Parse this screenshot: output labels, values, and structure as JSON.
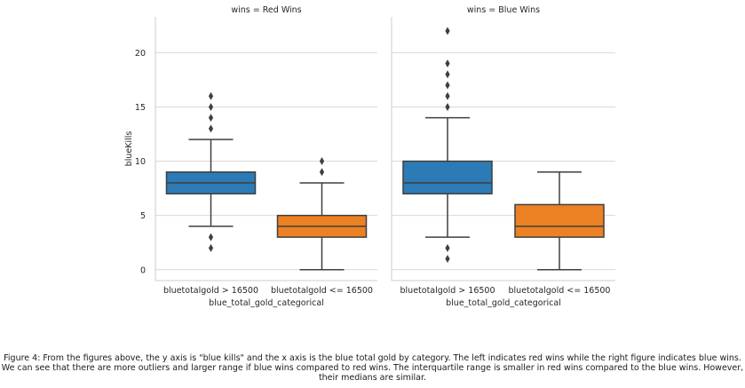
{
  "chart_data": {
    "type": "box",
    "x_label": "blue_total_gold_categorical",
    "y_label": "blueKills",
    "ylim": [
      -1,
      23.3
    ],
    "y_ticks": [
      0,
      5,
      10,
      15,
      20
    ],
    "grid": "horizontal",
    "categories": [
      "bluetotalgold > 16500",
      "bluetotalgold <= 16500"
    ],
    "colors": {
      "bluetotalgold > 16500": "#2c7bb6",
      "bluetotalgold <= 16500": "#ec8123"
    },
    "panels": [
      {
        "title": "wins = Red Wins",
        "boxes": [
          {
            "category": "bluetotalgold > 16500",
            "whisker_low": 4,
            "q1": 7,
            "median": 8,
            "q3": 9,
            "whisker_high": 12,
            "outliers": [
              2,
              3,
              13,
              14,
              15,
              16
            ]
          },
          {
            "category": "bluetotalgold <= 16500",
            "whisker_low": 0,
            "q1": 3,
            "median": 4,
            "q3": 5,
            "whisker_high": 8,
            "outliers": [
              9,
              10
            ]
          }
        ]
      },
      {
        "title": "wins = Blue Wins",
        "boxes": [
          {
            "category": "bluetotalgold > 16500",
            "whisker_low": 3,
            "q1": 7,
            "median": 8,
            "q3": 10,
            "whisker_high": 14,
            "outliers": [
              1,
              2,
              15,
              16,
              17,
              18,
              19,
              22
            ]
          },
          {
            "category": "bluetotalgold <= 16500",
            "whisker_low": 0,
            "q1": 3,
            "median": 4,
            "q3": 6,
            "whisker_high": 9,
            "outliers": []
          }
        ]
      }
    ]
  },
  "caption": "Figure 4: From the figures above, the y axis is \"blue kills\" and the x axis is the blue total gold by category. The left indicates red wins while the right figure indicates blue wins. We can see that there are more outliers and larger range if blue wins compared to red wins. The interquartile range is smaller in red wins compared to the blue wins. However, their medians are similar."
}
